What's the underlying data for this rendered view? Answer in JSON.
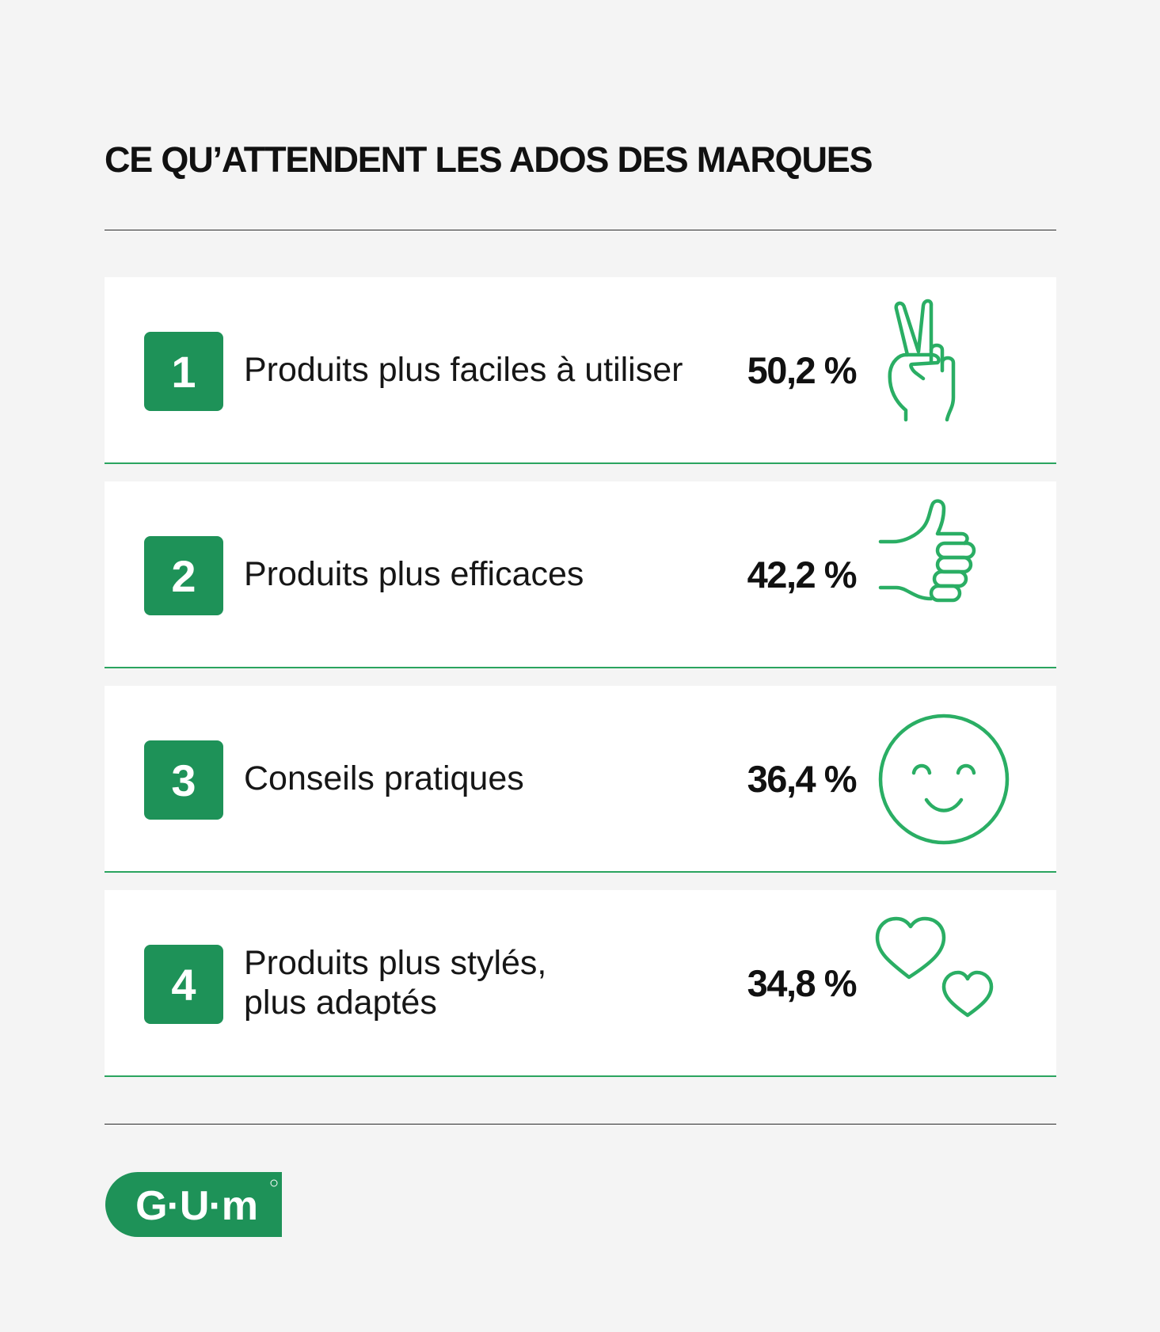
{
  "title": "CE QU’ATTENDENT LES ADOS DES MARQUES",
  "chart_data": {
    "type": "table",
    "title": "CE QU’ATTENDENT LES ADOS DES MARQUES",
    "unit": "%",
    "rows": [
      {
        "rank": "1",
        "label_lines": [
          "Produits plus faciles à utiliser"
        ],
        "value": 50.2,
        "value_label": "50,2 %",
        "icon": "victory-hand-icon"
      },
      {
        "rank": "2",
        "label_lines": [
          "Produits plus efficaces"
        ],
        "value": 42.2,
        "value_label": "42,2 %",
        "icon": "thumbs-up-icon"
      },
      {
        "rank": "3",
        "label_lines": [
          "Conseils pratiques"
        ],
        "value": 36.4,
        "value_label": "36,4 %",
        "icon": "smiley-face-icon"
      },
      {
        "rank": "4",
        "label_lines": [
          "Produits plus stylés,",
          "plus adaptés"
        ],
        "value": 34.8,
        "value_label": "34,8 %",
        "icon": "hearts-icon"
      }
    ]
  },
  "logo": {
    "text": "G·U·M",
    "brand_color": "#1e9258"
  },
  "colors": {
    "accent": "#1e9258",
    "icon_stroke": "#2aae64",
    "divider": "#2aa45f",
    "background": "#f4f4f4"
  }
}
